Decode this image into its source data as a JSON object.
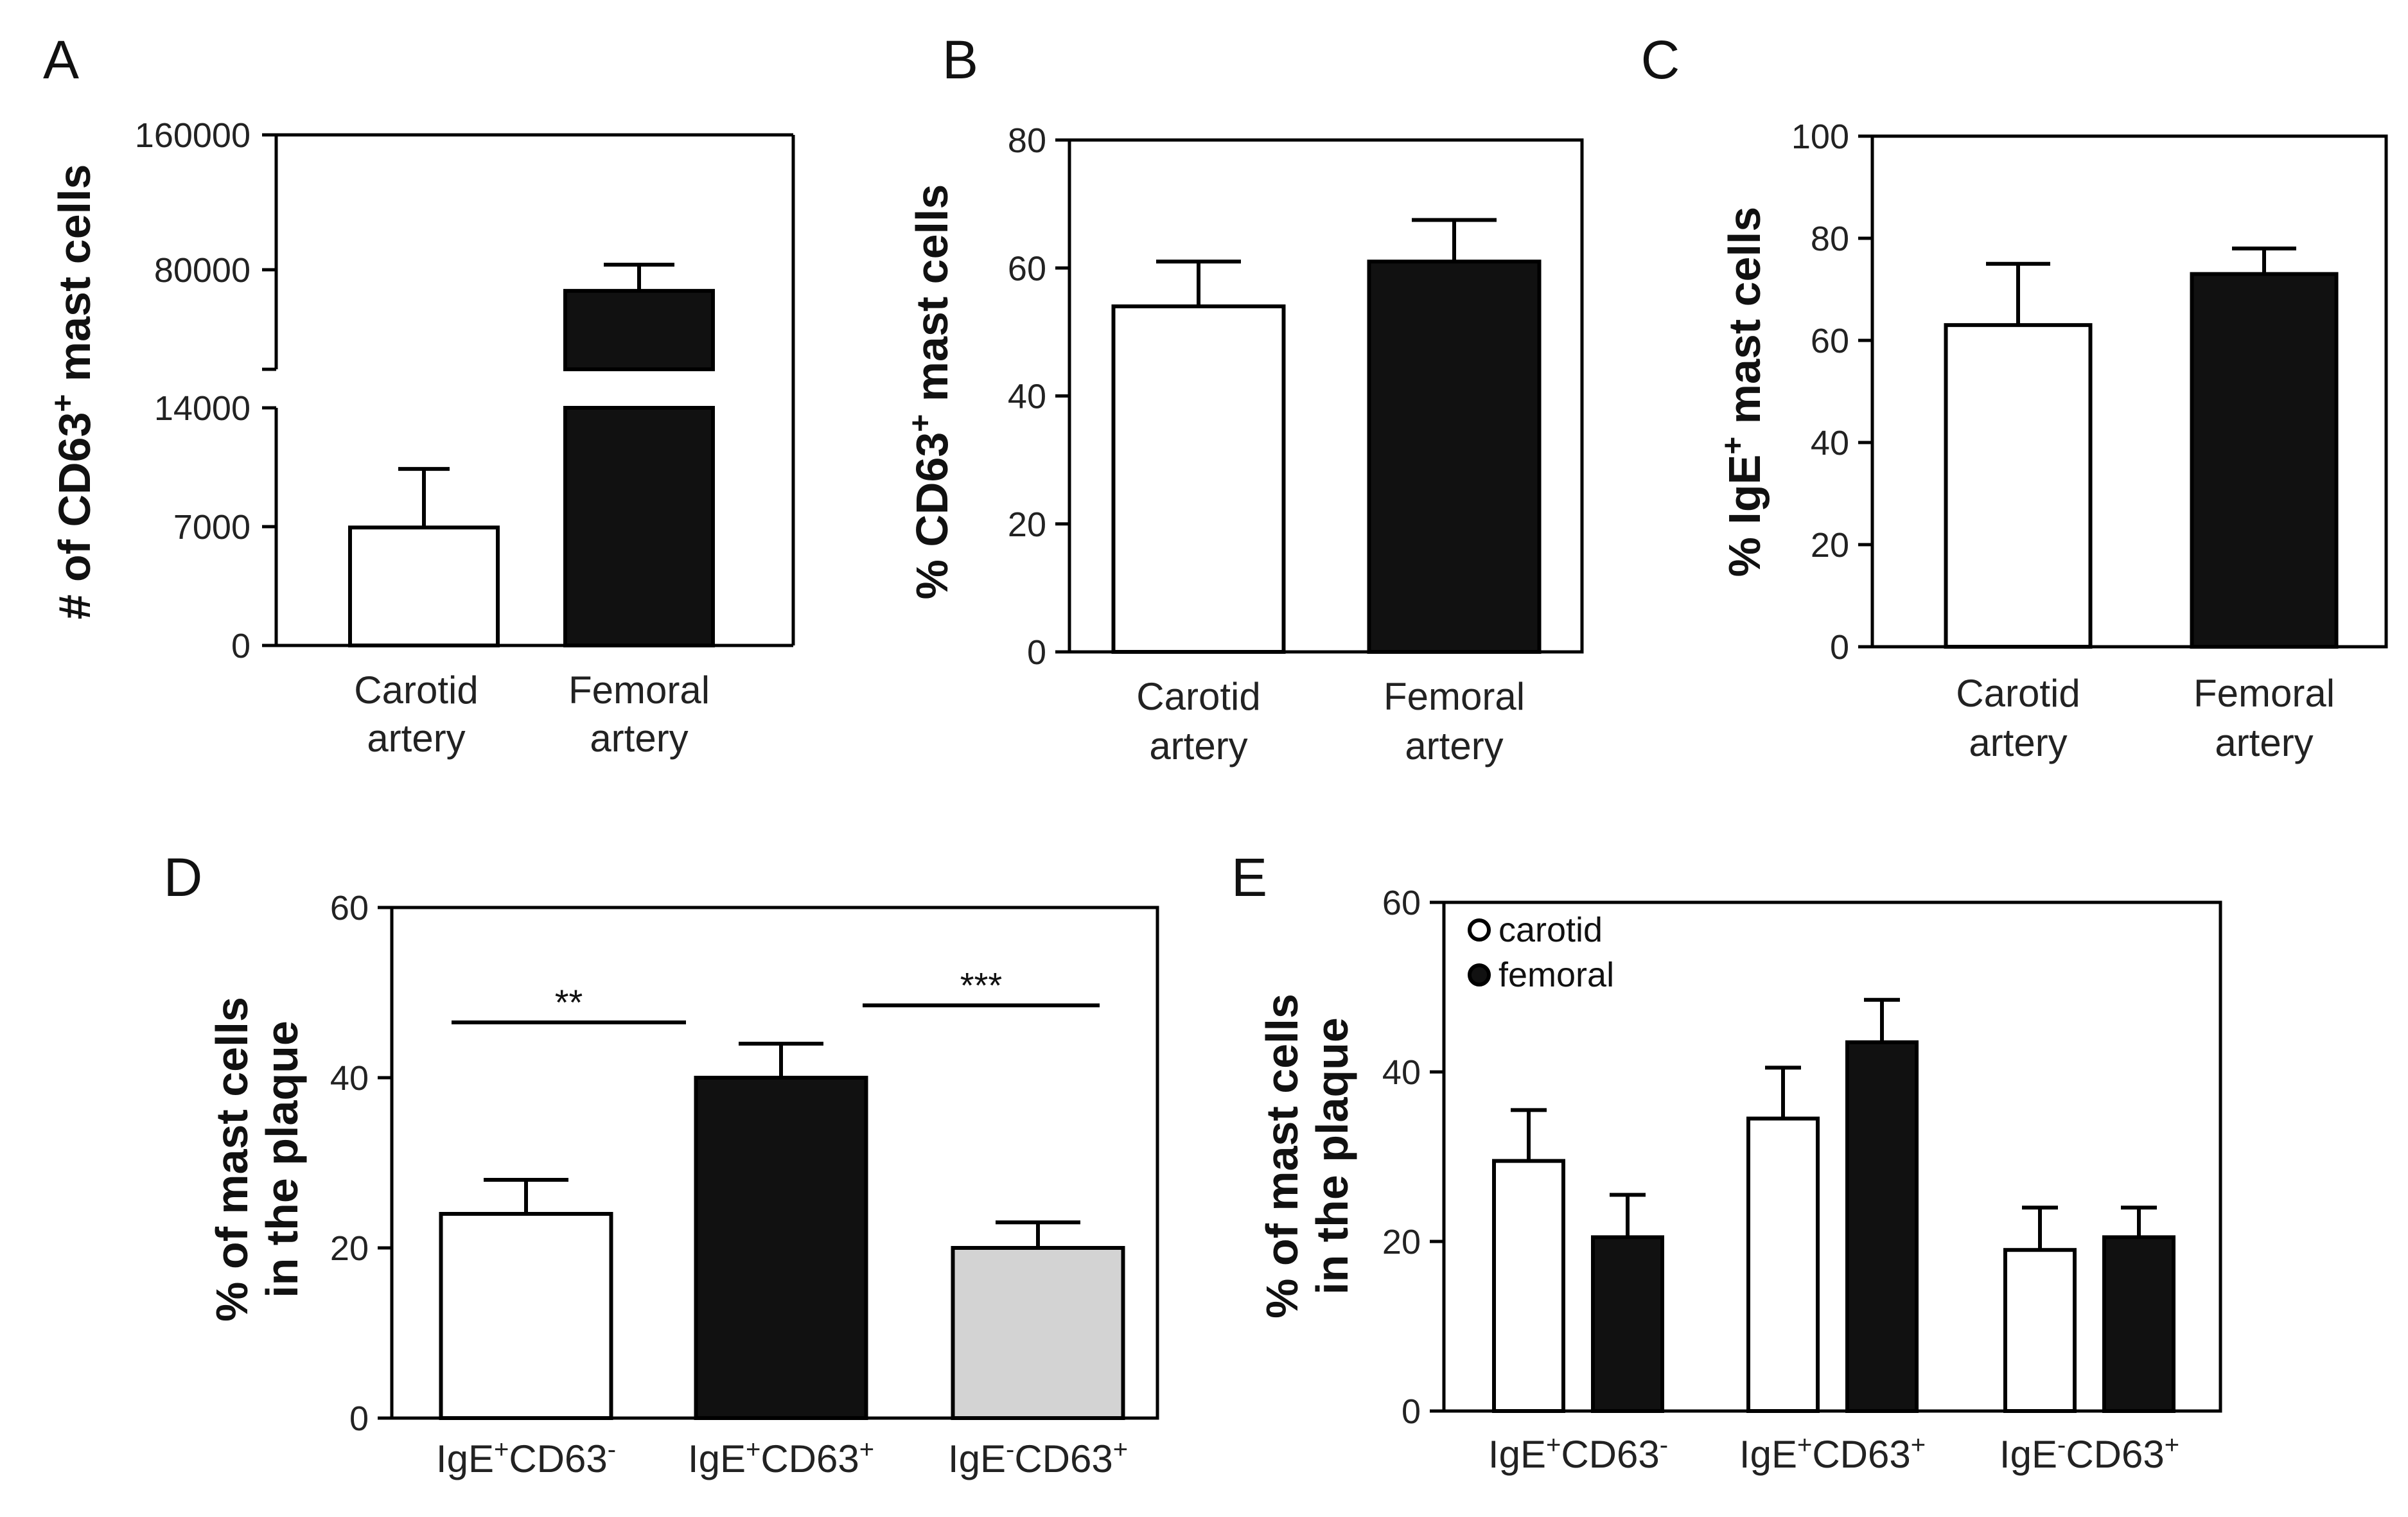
{
  "chart_data": [
    {
      "panel": "A",
      "type": "bar",
      "ylabel_main": "# of CD63",
      "ylabel_sup": "+",
      "ylabel_tail": " mast cells",
      "categories": [
        [
          "Carotid",
          "artery"
        ],
        [
          "Femoral",
          "artery"
        ]
      ],
      "values": [
        6950,
        66000
      ],
      "errors": [
        3450,
        17000
      ],
      "colors": [
        "#ffffff",
        "#111111"
      ],
      "axis_break": true,
      "ytick_labels": [
        "0",
        "7000",
        "14000",
        "80000",
        "160000"
      ]
    },
    {
      "panel": "B",
      "type": "bar",
      "ylabel_main": "% CD63",
      "ylabel_sup": "+",
      "ylabel_tail": " mast cells",
      "categories": [
        [
          "Carotid",
          "artery"
        ],
        [
          "Femoral",
          "artery"
        ]
      ],
      "values": [
        54,
        61
      ],
      "errors": [
        7,
        6.5
      ],
      "colors": [
        "#ffffff",
        "#111111"
      ],
      "ylim": [
        0,
        80
      ],
      "yticks": [
        0,
        20,
        40,
        60,
        80
      ]
    },
    {
      "panel": "C",
      "type": "bar",
      "ylabel_main": "% IgE",
      "ylabel_sup": "+",
      "ylabel_tail": " mast cells",
      "categories": [
        [
          "Carotid",
          "artery"
        ],
        [
          "Femoral",
          "artery"
        ]
      ],
      "values": [
        63,
        73
      ],
      "errors": [
        12,
        5
      ],
      "colors": [
        "#ffffff",
        "#111111"
      ],
      "ylim": [
        0,
        100
      ],
      "yticks": [
        0,
        20,
        40,
        60,
        80,
        100
      ]
    },
    {
      "panel": "D",
      "type": "bar",
      "ylabel_lines": [
        "% of mast cells",
        "in the plaque"
      ],
      "categories": [
        [
          "IgE",
          "+",
          "CD63",
          "-"
        ],
        [
          "IgE",
          "+",
          "CD63",
          "+"
        ],
        [
          "IgE",
          "-",
          "CD63",
          "+"
        ]
      ],
      "values": [
        24,
        40,
        20
      ],
      "errors": [
        4,
        4,
        3
      ],
      "colors": [
        "#ffffff",
        "#111111",
        "#d3d3d3"
      ],
      "ylim": [
        0,
        60
      ],
      "yticks": [
        0,
        20,
        40,
        60
      ],
      "significance": [
        {
          "from": 0,
          "to": 1,
          "label": "**",
          "y": 46.5
        },
        {
          "from": 1,
          "to": 2,
          "label": "***",
          "y": 48.5
        }
      ]
    },
    {
      "panel": "E",
      "type": "bar",
      "ylabel_lines": [
        "% of mast cells",
        "in the plaque"
      ],
      "categories": [
        [
          "IgE",
          "+",
          "CD63",
          "-"
        ],
        [
          "IgE",
          "+",
          "CD63",
          "+"
        ],
        [
          "IgE",
          "-",
          "CD63",
          "+"
        ]
      ],
      "series": [
        {
          "name": "carotid",
          "values": [
            29.5,
            34.5,
            19
          ],
          "errors": [
            6,
            6,
            5
          ],
          "color": "#ffffff"
        },
        {
          "name": "femoral",
          "values": [
            20.5,
            43.5,
            20.5
          ],
          "errors": [
            5,
            5,
            3.5
          ],
          "color": "#111111"
        }
      ],
      "ylim": [
        0,
        60
      ],
      "yticks": [
        0,
        20,
        40,
        60
      ],
      "legend_position": "top-left"
    }
  ]
}
